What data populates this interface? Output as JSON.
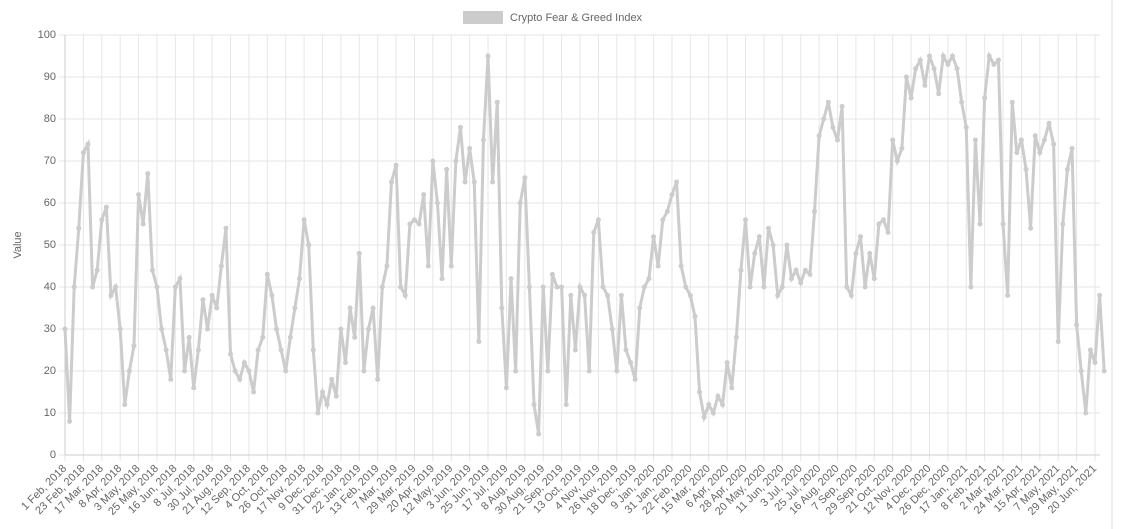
{
  "chart_data": {
    "type": "line",
    "y_label": "Value",
    "ylim": [
      0,
      100
    ],
    "yticks": [
      0,
      10,
      20,
      30,
      40,
      50,
      60,
      70,
      80,
      90,
      100
    ],
    "grid": true,
    "legend": "top",
    "categories": [
      "1 Feb, 2018",
      null,
      null,
      null,
      "23 Feb, 2018",
      null,
      null,
      null,
      "17 Mar, 2018",
      null,
      null,
      null,
      "8 Apr, 2018",
      null,
      null,
      null,
      "3 May, 2018",
      null,
      null,
      null,
      "25 May, 2018",
      null,
      null,
      null,
      "16 Jun, 2018",
      null,
      null,
      null,
      "8 Jul, 2018",
      null,
      null,
      null,
      "30 Jul, 2018",
      null,
      null,
      null,
      "21 Aug, 2018",
      null,
      null,
      null,
      "12 Sep, 2018",
      null,
      null,
      null,
      "4 Oct, 2018",
      null,
      null,
      null,
      "26 Oct, 2018",
      null,
      null,
      null,
      "17 Nov, 2018",
      null,
      null,
      null,
      "9 Dec, 2018",
      null,
      null,
      null,
      "31 Dec, 2018",
      null,
      null,
      null,
      "22 Jan, 2019",
      null,
      null,
      null,
      "13 Feb, 2019",
      null,
      null,
      null,
      "7 Mar, 2019",
      null,
      null,
      null,
      "29 Mar, 2019",
      null,
      null,
      null,
      "20 Apr, 2019",
      null,
      null,
      null,
      "12 May, 2019",
      null,
      null,
      null,
      "3 Jun, 2019",
      null,
      null,
      null,
      "25 Jun, 2019",
      null,
      null,
      null,
      "17 Jul, 2019",
      null,
      null,
      null,
      "8 Aug, 2019",
      null,
      null,
      null,
      "30 Aug, 2019",
      null,
      null,
      null,
      "21 Sep, 2019",
      null,
      null,
      null,
      "13 Oct, 2019",
      null,
      null,
      null,
      "4 Nov, 2019",
      null,
      null,
      null,
      "26 Nov, 2019",
      null,
      null,
      null,
      "18 Dec, 2019",
      null,
      null,
      null,
      "9 Jan, 2020",
      null,
      null,
      null,
      "31 Jan, 2020",
      null,
      null,
      null,
      "22 Feb, 2020",
      null,
      null,
      null,
      "15 Mar, 2020",
      null,
      null,
      null,
      "6 Apr, 2020",
      null,
      null,
      null,
      "28 Apr, 2020",
      null,
      null,
      null,
      "20 May, 2020",
      null,
      null,
      null,
      "11 Jun, 2020",
      null,
      null,
      null,
      "3 Jul, 2020",
      null,
      null,
      null,
      "25 Jul, 2020",
      null,
      null,
      null,
      "16 Aug, 2020",
      null,
      null,
      null,
      "7 Sep, 2020",
      null,
      null,
      null,
      "29 Sep, 2020",
      null,
      null,
      null,
      "21 Oct, 2020",
      null,
      null,
      null,
      "12 Nov, 2020",
      null,
      null,
      null,
      "4 Dec, 2020",
      null,
      null,
      null,
      "26 Dec, 2020",
      null,
      null,
      null,
      "17 Jan, 2021",
      null,
      null,
      null,
      "8 Feb, 2021",
      null,
      null,
      null,
      "2 Mar, 2021",
      null,
      null,
      null,
      "24 Mar, 2021",
      null,
      null,
      null,
      "15 Apr, 2021",
      null,
      null,
      null,
      "7 May, 2021",
      null,
      null,
      null,
      "29 May, 2021",
      null,
      null,
      null,
      "20 Jun, 2021",
      null,
      null
    ],
    "series": [
      {
        "name": "Crypto Fear & Greed Index",
        "color": "#cccccc",
        "values": [
          30,
          8,
          40,
          54,
          72,
          74,
          40,
          44,
          56,
          59,
          38,
          40,
          30,
          12,
          20,
          26,
          62,
          55,
          67,
          44,
          40,
          30,
          25,
          18,
          40,
          42,
          20,
          28,
          16,
          25,
          37,
          30,
          38,
          35,
          45,
          54,
          24,
          20,
          18,
          22,
          20,
          15,
          25,
          28,
          43,
          38,
          30,
          25,
          20,
          28,
          35,
          42,
          56,
          50,
          25,
          10,
          15,
          12,
          18,
          14,
          30,
          22,
          35,
          28,
          48,
          20,
          30,
          35,
          18,
          40,
          45,
          65,
          69,
          40,
          38,
          55,
          56,
          55,
          62,
          45,
          70,
          60,
          42,
          68,
          45,
          70,
          78,
          65,
          73,
          65,
          27,
          75,
          95,
          65,
          84,
          35,
          16,
          42,
          20,
          60,
          66,
          40,
          12,
          5,
          40,
          20,
          43,
          40,
          40,
          12,
          38,
          25,
          40,
          38,
          20,
          53,
          56,
          40,
          38,
          30,
          20,
          38,
          25,
          22,
          18,
          35,
          40,
          42,
          52,
          45,
          56,
          58,
          62,
          65,
          45,
          40,
          38,
          33,
          15,
          9,
          12,
          10,
          14,
          12,
          22,
          16,
          28,
          44,
          56,
          40,
          48,
          52,
          40,
          54,
          50,
          38,
          40,
          50,
          42,
          44,
          41,
          44,
          43,
          58,
          76,
          80,
          84,
          78,
          75,
          83,
          40,
          38,
          48,
          52,
          40,
          48,
          42,
          55,
          56,
          53,
          75,
          70,
          73,
          90,
          85,
          92,
          94,
          88,
          95,
          92,
          86,
          95,
          93,
          95,
          92,
          84,
          78,
          40,
          75,
          55,
          85,
          95,
          93,
          94,
          55,
          38,
          84,
          72,
          75,
          68,
          54,
          76,
          72,
          75,
          79,
          74,
          27,
          55,
          68,
          73,
          31,
          20,
          10,
          25,
          22,
          38,
          20
        ]
      }
    ]
  }
}
